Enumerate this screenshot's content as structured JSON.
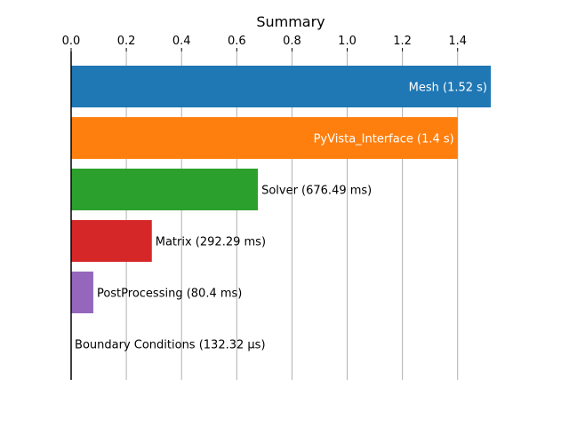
{
  "chart_data": {
    "type": "bar",
    "orientation": "horizontal",
    "title": "Summary",
    "xlabel": "",
    "ylabel": "",
    "xlim": [
      0,
      1.52
    ],
    "x_ticks": [
      "0.0",
      "0.2",
      "0.4",
      "0.6",
      "0.8",
      "1.0",
      "1.2",
      "1.4"
    ],
    "grid": "vertical",
    "x_axis_position": "top",
    "categories": [
      "Mesh",
      "PyVista_Interface",
      "Solver",
      "Matrix",
      "PostProcessing",
      "Boundary Conditions"
    ],
    "values": [
      1.52,
      1.4,
      0.67649,
      0.29229,
      0.0804,
      0.00013232
    ],
    "colors": [
      "#1f77b4",
      "#ff7f0e",
      "#2ca02c",
      "#d62728",
      "#9467bd",
      "#8c564b"
    ],
    "bar_labels": [
      "Mesh (1.52 s)",
      "PyVista_Interface (1.4 s)",
      "Solver (676.49 ms)",
      "Matrix (292.29 ms)",
      "PostProcessing (80.4 ms)",
      "Boundary Conditions (132.32 µs)"
    ]
  }
}
